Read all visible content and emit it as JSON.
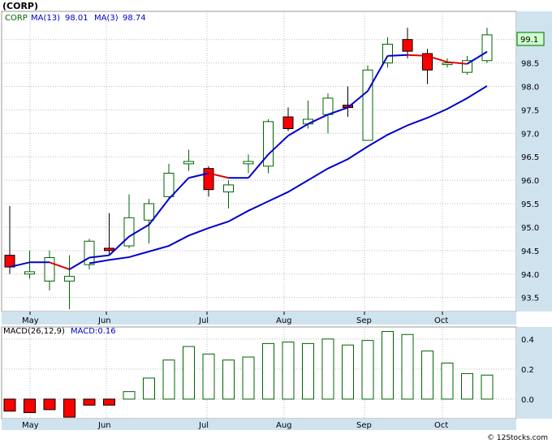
{
  "title": "(CORP)",
  "legend": {
    "symbol": "CORP",
    "ma13_label": "MA(13)",
    "ma13_value": "98.01",
    "ma3_label": "MA(3)",
    "ma3_value": "98.74"
  },
  "price_badge": "99.1",
  "macd_legend": {
    "label": "MACD(26,12,9)",
    "value_label": "MACD:0.16"
  },
  "watermark": "© 12Stocks.com",
  "colors": {
    "background": "#ffffff",
    "axis_band": "#cfe3ef",
    "up_candle_outline": "#006400",
    "down_candle_fill": "#ff0000",
    "ma13_line": "#0000cc",
    "ma3_up": "#0000cc",
    "ma3_down": "#dd0000",
    "badge_fill": "#ccffcc"
  },
  "chart_data": [
    {
      "type": "candlestick",
      "title": "(CORP)",
      "months": [
        "May",
        "Jun",
        "Jul",
        "Aug",
        "Sep",
        "Oct"
      ],
      "ylim": [
        93.2,
        99.6
      ],
      "yticks": [
        "93.5",
        "94.0",
        "94.5",
        "95.0",
        "95.5",
        "96.0",
        "96.5",
        "97.0",
        "97.5",
        "98.0",
        "98.5",
        "99.0"
      ],
      "candles": [
        {
          "o": 94.4,
          "h": 95.45,
          "l": 94.0,
          "c": 94.15
        },
        {
          "o": 94.0,
          "h": 94.5,
          "l": 93.9,
          "c": 94.05
        },
        {
          "o": 93.85,
          "h": 94.5,
          "l": 93.65,
          "c": 94.35
        },
        {
          "o": 93.85,
          "h": 94.4,
          "l": 93.25,
          "c": 93.95
        },
        {
          "o": 94.2,
          "h": 94.75,
          "l": 94.1,
          "c": 94.7
        },
        {
          "o": 94.55,
          "h": 95.3,
          "l": 94.4,
          "c": 94.5
        },
        {
          "o": 94.6,
          "h": 95.7,
          "l": 94.55,
          "c": 95.2
        },
        {
          "o": 95.15,
          "h": 95.6,
          "l": 94.65,
          "c": 95.5
        },
        {
          "o": 95.65,
          "h": 96.35,
          "l": 95.6,
          "c": 96.15
        },
        {
          "o": 96.35,
          "h": 96.65,
          "l": 96.2,
          "c": 96.4
        },
        {
          "o": 96.25,
          "h": 96.3,
          "l": 95.65,
          "c": 95.8
        },
        {
          "o": 95.75,
          "h": 96.0,
          "l": 95.4,
          "c": 95.9
        },
        {
          "o": 96.35,
          "h": 96.55,
          "l": 96.15,
          "c": 96.4
        },
        {
          "o": 96.3,
          "h": 97.3,
          "l": 96.15,
          "c": 97.25
        },
        {
          "o": 97.35,
          "h": 97.55,
          "l": 97.05,
          "c": 97.1
        },
        {
          "o": 97.2,
          "h": 97.7,
          "l": 97.1,
          "c": 97.3
        },
        {
          "o": 97.4,
          "h": 97.85,
          "l": 97.0,
          "c": 97.75
        },
        {
          "o": 97.6,
          "h": 98.0,
          "l": 97.35,
          "c": 97.55
        },
        {
          "o": 96.85,
          "h": 98.45,
          "l": 96.85,
          "c": 98.35
        },
        {
          "o": 98.5,
          "h": 99.05,
          "l": 98.4,
          "c": 98.9
        },
        {
          "o": 99.0,
          "h": 99.25,
          "l": 98.6,
          "c": 98.75
        },
        {
          "o": 98.7,
          "h": 98.8,
          "l": 98.05,
          "c": 98.35
        },
        {
          "o": 98.5,
          "h": 98.6,
          "l": 98.4,
          "c": 98.5
        },
        {
          "o": 98.3,
          "h": 98.65,
          "l": 98.25,
          "c": 98.55
        },
        {
          "o": 98.55,
          "h": 99.25,
          "l": 98.5,
          "c": 99.1
        }
      ],
      "ma13": [
        null,
        null,
        null,
        null,
        94.23,
        94.3,
        94.36,
        94.48,
        94.6,
        94.82,
        94.98,
        95.12,
        95.35,
        95.55,
        95.75,
        96.0,
        96.25,
        96.45,
        96.72,
        96.97,
        97.17,
        97.33,
        97.52,
        97.75,
        98.01
      ],
      "ma3": [
        94.15,
        94.25,
        94.25,
        94.1,
        94.35,
        94.4,
        94.8,
        95.05,
        95.6,
        96.05,
        96.15,
        96.05,
        96.05,
        96.55,
        96.95,
        97.2,
        97.4,
        97.55,
        97.9,
        98.65,
        98.67,
        98.65,
        98.52,
        98.48,
        98.74
      ]
    },
    {
      "type": "bar",
      "title": "MACD(26,12,9)",
      "months": [
        "May",
        "Jun",
        "Jul",
        "Aug",
        "Sep",
        "Oct"
      ],
      "ylim": [
        -0.13,
        0.48
      ],
      "yticks": [
        "0.0",
        "0.2",
        "0.4"
      ],
      "values": [
        -0.08,
        -0.09,
        -0.07,
        -0.12,
        -0.04,
        -0.04,
        0.05,
        0.14,
        0.26,
        0.35,
        0.3,
        0.26,
        0.28,
        0.37,
        0.38,
        0.37,
        0.4,
        0.36,
        0.39,
        0.45,
        0.43,
        0.32,
        0.24,
        0.17,
        0.16
      ]
    }
  ]
}
